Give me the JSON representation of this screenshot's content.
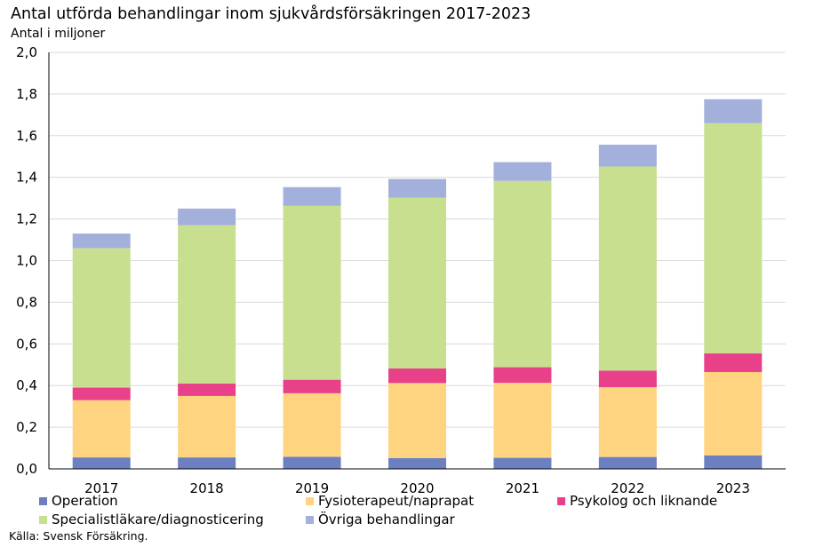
{
  "title": "Antal utförda behandlingar inom sjukvårdsförsäkringen 2017-2023",
  "ylabel": "Antal i miljoner",
  "source": "Källa: Svensk Försäkring.",
  "chart_data": {
    "type": "bar",
    "stacked": true,
    "categories": [
      "2017",
      "2018",
      "2019",
      "2020",
      "2021",
      "2022",
      "2023"
    ],
    "series": [
      {
        "name": "Operation",
        "color": "#6b7fc1",
        "values": [
          0.055,
          0.055,
          0.058,
          0.052,
          0.053,
          0.057,
          0.065
        ]
      },
      {
        "name": "Fysioterapeut/naprapat",
        "color": "#ffd480",
        "values": [
          0.275,
          0.295,
          0.305,
          0.36,
          0.36,
          0.335,
          0.4
        ]
      },
      {
        "name": "Psykolog och liknande",
        "color": "#e8418a",
        "values": [
          0.06,
          0.06,
          0.065,
          0.07,
          0.075,
          0.08,
          0.09
        ]
      },
      {
        "name": "Specialistläkare/diagnosticering",
        "color": "#c8df8f",
        "values": [
          0.67,
          0.76,
          0.835,
          0.82,
          0.895,
          0.98,
          1.105
        ]
      },
      {
        "name": "Övriga behandlingar",
        "color": "#a4b0dc",
        "values": [
          0.07,
          0.08,
          0.09,
          0.09,
          0.09,
          0.105,
          0.115
        ]
      }
    ],
    "ylim": [
      0,
      2.0
    ],
    "yticks": [
      "0,0",
      "0,2",
      "0,4",
      "0,6",
      "0,8",
      "1,0",
      "1,2",
      "1,4",
      "1,6",
      "1,8",
      "2,0"
    ],
    "grid": true,
    "legend_position": "bottom"
  }
}
